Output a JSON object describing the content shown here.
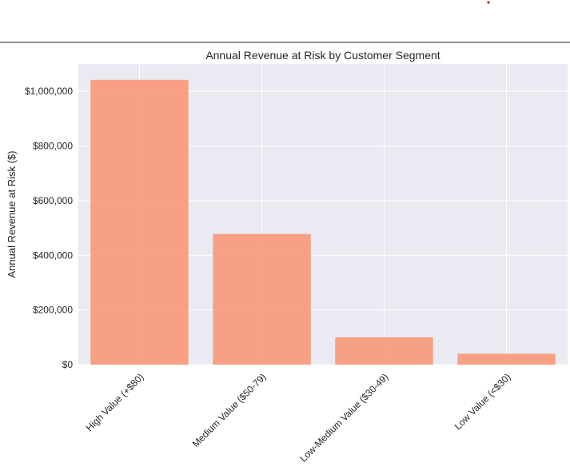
{
  "chart_data": {
    "type": "bar",
    "title": "Annual Revenue at Risk by Customer Segment",
    "xlabel": "",
    "ylabel": "Annual Revenue at Risk ($)",
    "categories": [
      "High Value (+$80)",
      "Medium Value ($50-79)",
      "Low-Medium Value ($30-49)",
      "Low Value (<$30)"
    ],
    "values": [
      1042000,
      478000,
      100000,
      40000
    ],
    "ylim": [
      0,
      1100000
    ],
    "yticks": [
      0,
      200000,
      400000,
      600000,
      800000,
      1000000
    ],
    "ytick_labels": [
      "$0",
      "$200,000",
      "$400,000",
      "$600,000",
      "$800,000",
      "$1,000,000"
    ],
    "grid": true,
    "bar_color": "#f89c7c",
    "plot_background": "#eaeaf2",
    "grid_color": "#ffffff"
  }
}
